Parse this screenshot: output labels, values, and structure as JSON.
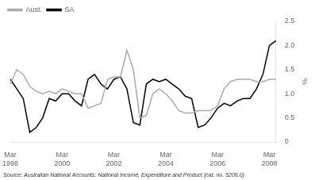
{
  "chart_data": {
    "type": "line",
    "categories": [
      "Mar\n1998",
      null,
      null,
      null,
      null,
      null,
      null,
      null,
      "Mar\n2000",
      null,
      null,
      null,
      null,
      null,
      null,
      null,
      "Mar\n2002",
      null,
      null,
      null,
      null,
      null,
      null,
      null,
      "Mar\n2004",
      null,
      null,
      null,
      null,
      null,
      null,
      null,
      "Mar\n2006",
      null,
      null,
      null,
      null,
      null,
      null,
      null,
      "Mar\n2008",
      null
    ],
    "series": [
      {
        "name": "Aust.",
        "color": "#aaaaaa",
        "values": [
          1.2,
          1.5,
          1.4,
          1.15,
          1.05,
          1.0,
          1.05,
          1.0,
          1.1,
          1.05,
          1.0,
          1.0,
          0.7,
          0.75,
          0.8,
          1.3,
          1.35,
          1.35,
          1.9,
          1.5,
          0.5,
          0.55,
          1.0,
          1.1,
          1.0,
          0.85,
          0.65,
          0.6,
          0.6,
          0.65,
          0.65,
          0.65,
          0.75,
          1.1,
          1.25,
          1.3,
          1.3,
          1.3,
          1.25,
          1.25,
          1.3,
          1.3
        ]
      },
      {
        "name": "SA",
        "color": "#000000",
        "values": [
          1.3,
          1.1,
          0.9,
          0.2,
          0.3,
          0.5,
          0.9,
          0.85,
          1.0,
          1.0,
          0.85,
          0.75,
          1.3,
          1.4,
          1.2,
          1.1,
          1.3,
          1.35,
          1.1,
          0.4,
          0.35,
          1.2,
          1.3,
          1.25,
          1.3,
          1.2,
          1.1,
          0.95,
          0.9,
          0.3,
          0.35,
          0.5,
          0.7,
          0.8,
          0.75,
          0.85,
          0.9,
          0.9,
          1.1,
          1.4,
          2.0,
          2.1
        ]
      }
    ],
    "ylabel": "%",
    "ylim": [
      0,
      2.5
    ],
    "yticks": [
      0,
      0.5,
      {
        "value": 1.0,
        "label": "1.0"
      },
      1.5,
      {
        "value": 2.0,
        "label": "2.0"
      },
      2.5
    ],
    "grid": false,
    "legend": "upper left",
    "annotations": [
      "Source: Australian National Accounts: National Income, Expenditure and Product (cat. no. 5206.0)"
    ]
  }
}
